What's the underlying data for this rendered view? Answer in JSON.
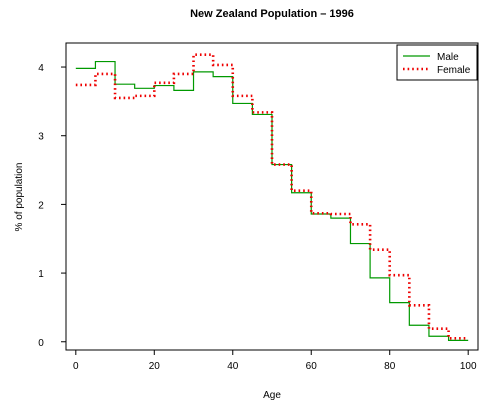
{
  "chart_data": {
    "type": "line",
    "title": "New Zealand Population – 1996",
    "xlabel": "Age",
    "ylabel": "% of population",
    "xlim": [
      -2.5,
      102.5
    ],
    "ylim": [
      -0.12,
      4.35
    ],
    "xticks": [
      0,
      20,
      40,
      60,
      80,
      100
    ],
    "yticks": [
      0,
      1,
      2,
      3,
      4
    ],
    "x_edges": [
      0,
      5,
      10,
      15,
      20,
      25,
      30,
      35,
      40,
      45,
      50,
      55,
      60,
      65,
      70,
      75,
      80,
      85,
      90,
      95,
      100
    ],
    "grid": false,
    "legend_position": "top-right",
    "series": [
      {
        "name": "Male",
        "color": "#009900",
        "style": "solid",
        "values": [
          3.98,
          4.08,
          3.75,
          3.69,
          3.73,
          3.66,
          3.93,
          3.86,
          3.47,
          3.31,
          2.58,
          2.17,
          1.86,
          1.8,
          1.43,
          0.93,
          0.57,
          0.24,
          0.08,
          0.02
        ]
      },
      {
        "name": "Female",
        "color": "#ee0000",
        "style": "dotted",
        "values": [
          3.74,
          3.9,
          3.55,
          3.58,
          3.77,
          3.9,
          4.18,
          4.03,
          3.58,
          3.34,
          2.58,
          2.2,
          1.87,
          1.86,
          1.71,
          1.34,
          0.97,
          0.53,
          0.19,
          0.05
        ]
      }
    ]
  }
}
